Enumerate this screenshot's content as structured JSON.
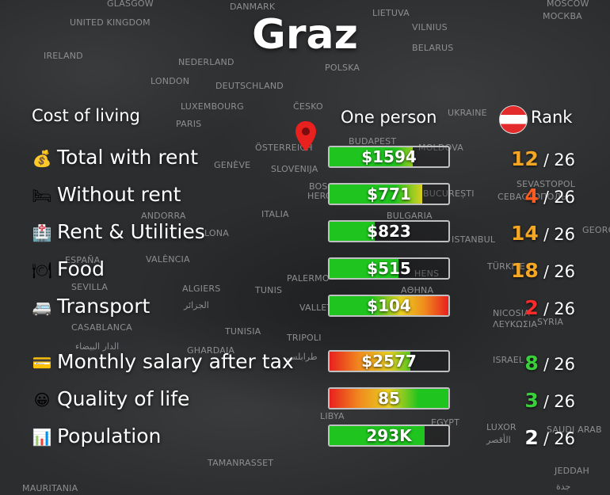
{
  "city": "Graz",
  "headers": {
    "section": "Cost of living",
    "column": "One person",
    "rank": "Rank"
  },
  "rows": [
    {
      "icon": "money-bag-icon",
      "glyph": "💰",
      "label": "Total with rent",
      "value": "$1594",
      "fill": 0.7,
      "fill_style": "green-orange",
      "rank": "12",
      "total": "26",
      "rank_color": "#f5a623"
    },
    {
      "icon": "bed-icon",
      "glyph": "🛏",
      "label": "Without rent",
      "value": "$771",
      "fill": 0.78,
      "fill_style": "green-orange",
      "rank": "4",
      "total": "26",
      "rank_color": "#ff5a1f"
    },
    {
      "icon": "hospital-icon",
      "glyph": "🏥",
      "label": "Rent & Utilities",
      "value": "$823",
      "fill": 0.38,
      "fill_style": "green",
      "rank": "14",
      "total": "26",
      "rank_color": "#f5a623"
    },
    {
      "icon": "fork-knife-plate-icon",
      "glyph": "🍽",
      "label": "Food",
      "value": "$515",
      "fill": 0.58,
      "fill_style": "green-yellow",
      "rank": "18",
      "total": "26",
      "rank_color": "#f5a623"
    },
    {
      "icon": "minibus-icon",
      "glyph": "🚐",
      "label": "Transport",
      "value": "$104",
      "fill": 1.0,
      "fill_style": "green-red",
      "rank": "2",
      "total": "26",
      "rank_color": "#ff2a2a"
    },
    {
      "icon": "credit-card-icon",
      "glyph": "💳",
      "label": "Monthly salary after tax",
      "value": "$2577",
      "fill": 0.68,
      "fill_style": "red-green",
      "rank": "8",
      "total": "26",
      "rank_color": "#3ad03a"
    },
    {
      "icon": "smiley-icon",
      "glyph": "😀",
      "label": "Quality of life",
      "value": "85",
      "fill": 1.0,
      "fill_style": "red-green",
      "rank": "3",
      "total": "26",
      "rank_color": "#3ad03a"
    },
    {
      "icon": "bar-chart-icon",
      "glyph": "📊",
      "label": "Population",
      "value": "293K",
      "fill": 0.8,
      "fill_style": "solid-green",
      "rank": "2",
      "total": "26",
      "rank_color": "#ffffff"
    }
  ],
  "colors": {
    "green": "#1fc41f",
    "yellow": "#e8d020",
    "orange": "#f08a1e",
    "red": "#e8201e",
    "bar_border": "#bfc0c2"
  },
  "map_labels": [
    "GLASGOW",
    "DANMARK",
    "LIETUVA",
    "MOSCOW",
    "МОСКВА",
    "UNITED KINGDOM",
    "VILNIUS",
    "IRELAND",
    "BELARUS",
    "NEDERLAND",
    "POLSKA",
    "LONDON",
    "DEUTSCHLAND",
    "LUXEMBOURG",
    "ČESKO",
    "UKRAINE",
    "PARIS",
    "BUDAPEST",
    "MOLDOVA",
    "ÖSTERREICH",
    "GENÈVE",
    "SLOVENIJA",
    "SEVASTOPOL",
    "СЕВАСТОПОЛЬ",
    "BOS",
    "HERCEGOVINA",
    "BUCUREȘTI",
    "ANDORRA",
    "ITALIA",
    "BULGARIA",
    "GEORG",
    "LONA",
    "ISTANBUL",
    "ESPAÑA",
    "VALÈNCIA",
    "TÜRKIYE",
    "SEVILLA",
    "PALERMO",
    "HENS",
    "ΑΘΗΝΑ",
    "ALGIERS",
    "TUNIS",
    "الجزائر",
    "VALLET",
    "NICOSIA",
    "ΛΕΥΚΩΣΙΑ",
    "SYRIA",
    "CASABLANCA",
    "TUNISIA",
    "الدار البيضاء",
    "TRIPOLI",
    "GHARDAIA",
    "طرابلس",
    "ISRAEL",
    "LIBYA",
    "EGYPT",
    "LUXOR",
    "الأقصر",
    "SAUDI ARAB",
    "TAMANRASSET",
    "JEDDAH",
    "جدة",
    "MAURITANIA"
  ]
}
